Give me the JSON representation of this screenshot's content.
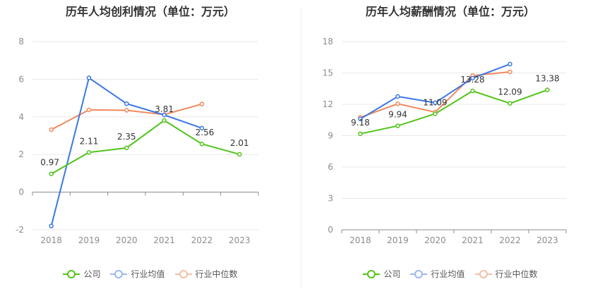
{
  "charts": [
    {
      "title": "历年人均创利情况（单位：万元）",
      "legend": [
        "公司",
        "行业均值",
        "行业中位数"
      ]
    },
    {
      "title": "历年人均薪酬情况（单位：万元）",
      "legend": [
        "公司",
        "行业均值",
        "行业中位数"
      ]
    }
  ],
  "chart_data": [
    {
      "type": "line",
      "title": "历年人均创利情况（单位：万元）",
      "categories": [
        "2018",
        "2019",
        "2020",
        "2021",
        "2022",
        "2023"
      ],
      "ylim": [
        -2,
        8
      ],
      "yticks": [
        -2,
        0,
        2,
        4,
        6,
        8
      ],
      "grid": true,
      "legend_position": "bottom",
      "series": [
        {
          "name": "公司",
          "color": "#52c41a",
          "values": [
            0.97,
            2.11,
            2.35,
            3.81,
            2.56,
            2.01
          ],
          "labels": [
            "0.97",
            "2.11",
            "2.35",
            "3.81",
            "2.56",
            "2.01"
          ]
        },
        {
          "name": "行业均值",
          "color": "#3b78e7",
          "values": [
            -1.8,
            6.07,
            4.7,
            4.1,
            3.4,
            null
          ]
        },
        {
          "name": "行业中位数",
          "color": "#f08a5d",
          "values": [
            3.32,
            4.37,
            4.35,
            4.12,
            4.68,
            null
          ]
        }
      ]
    },
    {
      "type": "line",
      "title": "历年人均薪酬情况（单位：万元）",
      "categories": [
        "2018",
        "2019",
        "2020",
        "2021",
        "2022",
        "2023"
      ],
      "ylim": [
        0,
        18
      ],
      "yticks": [
        0,
        3,
        6,
        9,
        12,
        15,
        18
      ],
      "grid": true,
      "legend_position": "bottom",
      "series": [
        {
          "name": "公司",
          "color": "#52c41a",
          "values": [
            9.18,
            9.94,
            11.09,
            13.28,
            12.09,
            13.38
          ],
          "labels": [
            "9.18",
            "9.94",
            "11.09",
            "13.28",
            "12.09",
            "13.38"
          ]
        },
        {
          "name": "行业均值",
          "color": "#3b78e7",
          "values": [
            10.6,
            12.75,
            12.15,
            14.5,
            15.85,
            null
          ]
        },
        {
          "name": "行业中位数",
          "color": "#f08a5d",
          "values": [
            10.75,
            12.05,
            11.25,
            14.75,
            15.1,
            null
          ]
        }
      ]
    }
  ]
}
